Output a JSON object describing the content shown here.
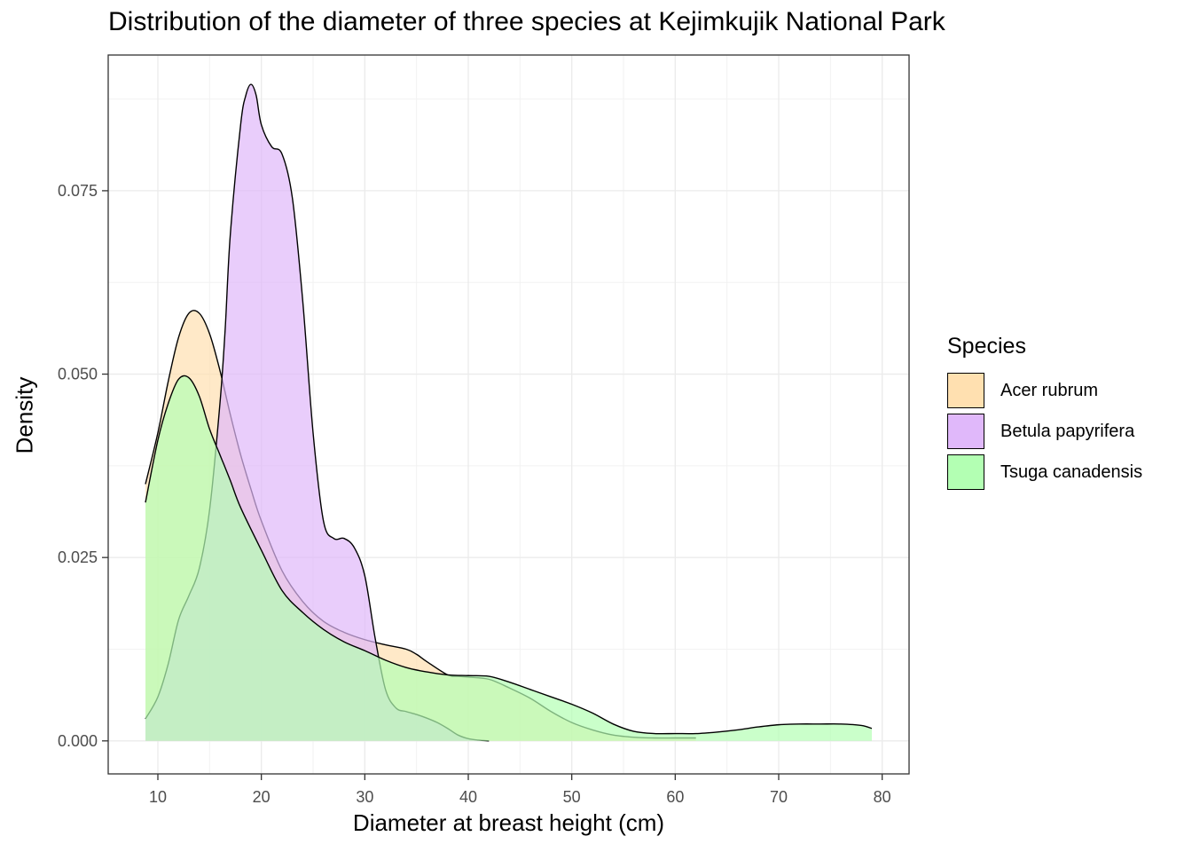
{
  "chart_data": {
    "type": "area",
    "subtype": "density",
    "title": "Distribution of the diameter of three species at Kejimkujik National Park",
    "xlabel": "Diameter at breast height (cm)",
    "ylabel": "Density",
    "xlim": [
      5.2,
      82.6
    ],
    "ylim": [
      -0.0045,
      0.0935
    ],
    "x_ticks": [
      10,
      20,
      30,
      40,
      50,
      60,
      70,
      80
    ],
    "y_ticks": [
      0.0,
      0.025,
      0.05,
      0.075
    ],
    "y_tick_labels": [
      "0.000",
      "0.025",
      "0.050",
      "0.075"
    ],
    "grid": true,
    "legend_title": "Species",
    "legend_position": "right",
    "series": [
      {
        "name": "Acer rubrum",
        "color": "#FFE0B0",
        "x": [
          8.8,
          10,
          11,
          12,
          13,
          14,
          15,
          16,
          17,
          18,
          19,
          20,
          22,
          24,
          26,
          28,
          30,
          32,
          34,
          35,
          36,
          38,
          39,
          40,
          42,
          44,
          46,
          48,
          50,
          52,
          54,
          56,
          58,
          60,
          62
        ],
        "values": [
          0.035,
          0.042,
          0.049,
          0.055,
          0.0583,
          0.0583,
          0.0555,
          0.0505,
          0.0445,
          0.039,
          0.0343,
          0.03,
          0.0232,
          0.019,
          0.0163,
          0.0148,
          0.0138,
          0.0131,
          0.0125,
          0.0118,
          0.0108,
          0.009,
          0.0088,
          0.0087,
          0.0084,
          0.0072,
          0.0058,
          0.004,
          0.0025,
          0.0015,
          0.0008,
          0.0005,
          0.0004,
          0.0004,
          0.0004
        ]
      },
      {
        "name": "Betula papyrifera",
        "color": "#E0B8FA",
        "x": [
          8.8,
          10,
          11,
          12,
          13,
          14,
          15,
          16,
          16.5,
          17,
          18,
          18.5,
          19,
          19.5,
          20,
          21,
          22,
          23,
          24,
          25,
          26,
          27,
          28,
          29,
          30,
          31,
          32,
          33,
          34,
          35,
          36,
          37,
          38,
          39,
          40,
          41,
          42
        ],
        "values": [
          0.003,
          0.006,
          0.0105,
          0.0165,
          0.0198,
          0.0235,
          0.0315,
          0.046,
          0.056,
          0.069,
          0.084,
          0.088,
          0.0895,
          0.088,
          0.084,
          0.081,
          0.08,
          0.074,
          0.06,
          0.042,
          0.03,
          0.0276,
          0.0276,
          0.0263,
          0.0225,
          0.014,
          0.007,
          0.0045,
          0.004,
          0.0036,
          0.0031,
          0.0025,
          0.0017,
          0.0008,
          0.0003,
          0.0001,
          0.0
        ]
      },
      {
        "name": "Tsuga canadensis",
        "color": "#B3FFB3",
        "x": [
          8.8,
          10,
          11,
          12,
          13,
          14,
          15,
          16,
          17,
          18,
          20,
          22,
          24,
          26,
          28,
          30,
          32,
          34,
          36,
          38,
          40,
          42,
          44,
          46,
          48,
          50,
          52,
          54,
          56,
          58,
          60,
          62,
          64,
          66,
          68,
          70,
          72,
          74,
          76,
          78,
          79
        ],
        "values": [
          0.0325,
          0.041,
          0.046,
          0.0493,
          0.0495,
          0.047,
          0.0425,
          0.039,
          0.0355,
          0.0318,
          0.026,
          0.0205,
          0.0175,
          0.0152,
          0.0135,
          0.0123,
          0.011,
          0.01,
          0.0094,
          0.009,
          0.0089,
          0.0088,
          0.008,
          0.007,
          0.006,
          0.005,
          0.0038,
          0.0023,
          0.0013,
          0.001,
          0.001,
          0.001,
          0.0012,
          0.0015,
          0.0019,
          0.0022,
          0.0023,
          0.0023,
          0.0023,
          0.0021,
          0.0017
        ]
      }
    ]
  }
}
